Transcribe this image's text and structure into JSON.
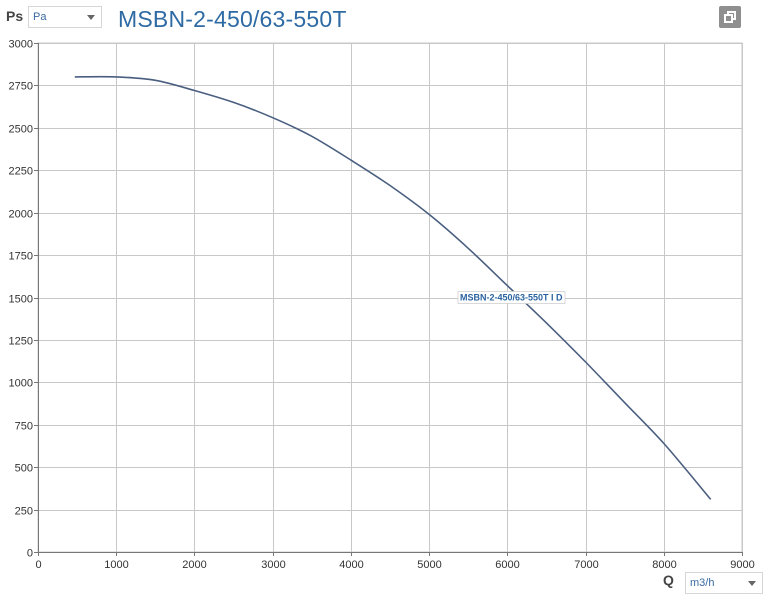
{
  "header": {
    "y_symbol": "Ps",
    "y_unit": "Pa",
    "title": "MSBN-2-450/63-550T"
  },
  "footer": {
    "x_symbol": "Q",
    "x_unit": "m3/h"
  },
  "colors": {
    "title": "#2e6aa3",
    "curve": "#4a5f80",
    "grid": "#c8c8c8"
  },
  "icons": {
    "copy": "copy-icon",
    "dropdown": "chevron-down-icon"
  },
  "chart_data": {
    "type": "line",
    "title": "MSBN-2-450/63-550T",
    "xlabel": "Q",
    "ylabel": "Ps",
    "xlim": [
      0,
      9000
    ],
    "ylim": [
      0,
      3000
    ],
    "xticks": [
      0,
      1000,
      2000,
      3000,
      4000,
      5000,
      6000,
      7000,
      8000,
      9000
    ],
    "yticks": [
      0,
      250,
      500,
      750,
      1000,
      1250,
      1500,
      1750,
      2000,
      2250,
      2500,
      2750,
      3000
    ],
    "grid": true,
    "series": [
      {
        "name": "MSBN-2-450/63-550T I D",
        "x": [
          470,
          1000,
          1500,
          2000,
          2500,
          3000,
          3500,
          4000,
          4500,
          5000,
          5500,
          6000,
          6500,
          7000,
          7500,
          8000,
          8600
        ],
        "y": [
          2800,
          2800,
          2780,
          2720,
          2650,
          2560,
          2450,
          2310,
          2160,
          1990,
          1790,
          1570,
          1350,
          1120,
          880,
          640,
          310
        ]
      }
    ]
  }
}
